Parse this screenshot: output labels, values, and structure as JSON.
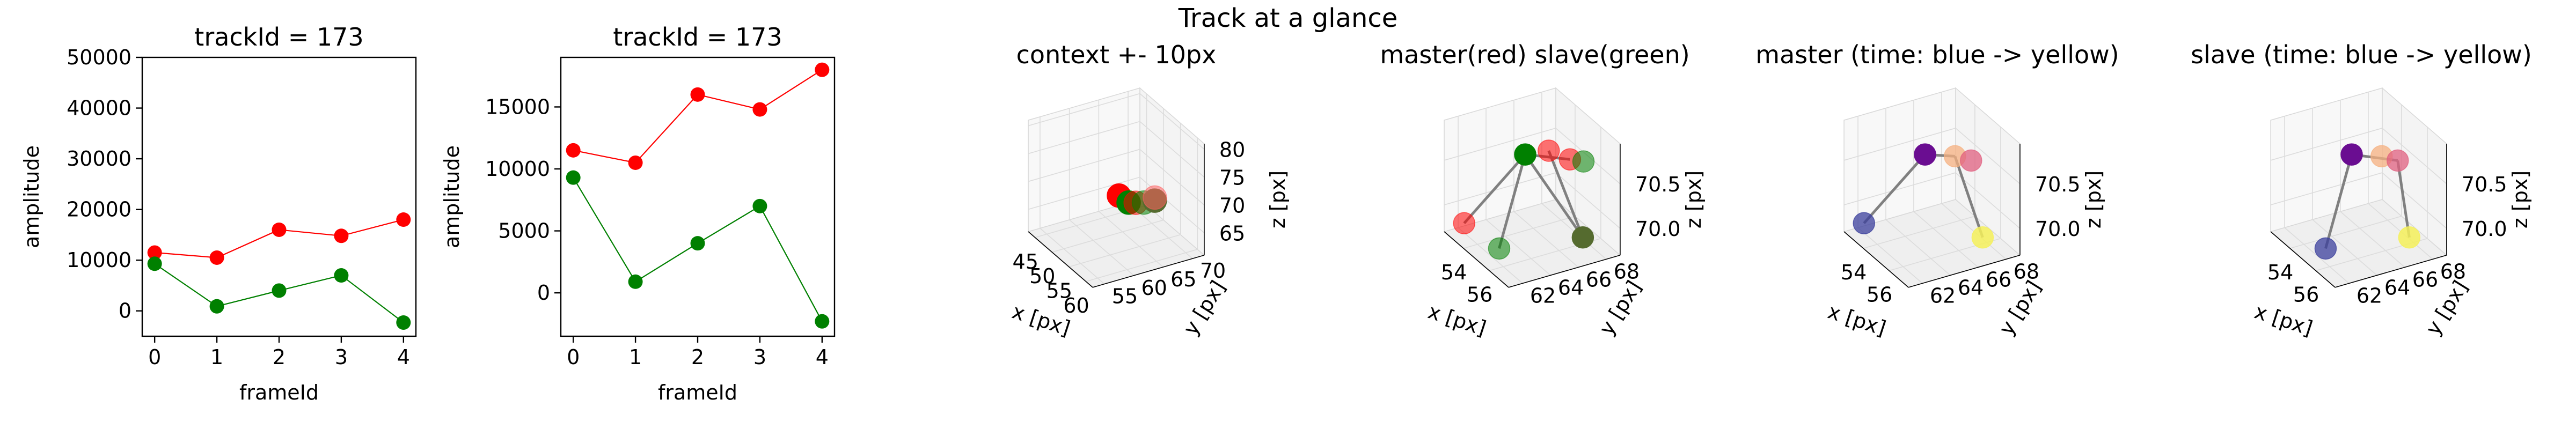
{
  "figure": {
    "suptitle": "Track at a glance"
  },
  "colors": {
    "master": "#ff0000",
    "slave": "#008000",
    "connector": "#808080",
    "time_start": "#2a2e9e",
    "time_end": "#f5f05a"
  },
  "chart_data": [
    {
      "type": "line",
      "title": "trackId = 173",
      "xlabel": "frameId",
      "ylabel": "amplitude",
      "xlim": [
        -0.2,
        4.2
      ],
      "ylim": [
        -5000,
        50000
      ],
      "xticks": [
        0,
        1,
        2,
        3,
        4
      ],
      "yticks": [
        0,
        10000,
        20000,
        30000,
        40000,
        50000
      ],
      "grid": false,
      "series": [
        {
          "color": "#ff0000",
          "x": [
            0,
            1,
            2,
            3,
            4
          ],
          "y": [
            11500,
            10500,
            16000,
            14800,
            18000
          ]
        },
        {
          "color": "#008000",
          "x": [
            0,
            1,
            2,
            3,
            4
          ],
          "y": [
            9300,
            900,
            4000,
            7000,
            -2300
          ]
        }
      ]
    },
    {
      "type": "line",
      "title": "trackId = 173",
      "xlabel": "frameId",
      "ylabel": "amplitude",
      "xlim": [
        -0.2,
        4.2
      ],
      "ylim": [
        -3500,
        19000
      ],
      "xticks": [
        0,
        1,
        2,
        3,
        4
      ],
      "yticks": [
        0,
        5000,
        10000,
        15000
      ],
      "grid": false,
      "series": [
        {
          "color": "#ff0000",
          "x": [
            0,
            1,
            2,
            3,
            4
          ],
          "y": [
            11500,
            10500,
            16000,
            14800,
            18000
          ]
        },
        {
          "color": "#008000",
          "x": [
            0,
            1,
            2,
            3,
            4
          ],
          "y": [
            9300,
            900,
            4000,
            7000,
            -2300
          ]
        }
      ]
    },
    {
      "type": "scatter",
      "title": "context +- 10px",
      "xlabel": "x [px]",
      "ylabel": "y [px]",
      "zlabel": "z [px]",
      "xticks": [
        "45",
        "50",
        "55",
        "60"
      ],
      "yticks": [
        "55",
        "60",
        "65",
        "70"
      ],
      "zticks": [
        "65",
        "70",
        "75",
        "80"
      ],
      "xlim": [
        43,
        62
      ],
      "ylim": [
        53,
        72
      ],
      "zlim": [
        61,
        81
      ],
      "points": [
        {
          "x": 53.3,
          "y": 62.5,
          "z": 70.0,
          "color": "#ff0000",
          "alpha": 1.0
        },
        {
          "x": 55.8,
          "y": 62.7,
          "z": 70.0,
          "color": "#008000",
          "alpha": 1.0
        },
        {
          "x": 56.5,
          "y": 63.5,
          "z": 70.1,
          "color": "#ff0000",
          "alpha": 0.55
        },
        {
          "x": 57.2,
          "y": 64.5,
          "z": 70.2,
          "color": "#008000",
          "alpha": 0.55
        },
        {
          "x": 57.8,
          "y": 66.0,
          "z": 70.4,
          "color": "#556b2f",
          "alpha": 1.0
        },
        {
          "x": 57.3,
          "y": 66.3,
          "z": 70.6,
          "color": "#ff6060",
          "alpha": 0.55
        }
      ]
    },
    {
      "type": "scatter",
      "title": "master(red) slave(green)",
      "xlabel": "x [px]",
      "ylabel": "y [px]",
      "zlabel": "z [px]",
      "xticks": [
        "54",
        "56"
      ],
      "yticks": [
        "62",
        "64",
        "66",
        "68"
      ],
      "zticks": [
        "70.0",
        "70.5"
      ],
      "xlim": [
        52.5,
        57.5
      ],
      "ylim": [
        61,
        69
      ],
      "zlim": [
        69.7,
        70.95
      ],
      "points": [
        {
          "x": 53.4,
          "y": 61.6,
          "z": 69.88,
          "color": "#ff0000",
          "alpha": 0.55
        },
        {
          "x": 55.9,
          "y": 61.8,
          "z": 69.9,
          "color": "#008000",
          "alpha": 0.55
        },
        {
          "x": 55.0,
          "y": 64.5,
          "z": 70.72,
          "color": "#008000",
          "alpha": 1.0
        },
        {
          "x": 55.2,
          "y": 66.0,
          "z": 70.72,
          "color": "#ff0000",
          "alpha": 0.55
        },
        {
          "x": 56.2,
          "y": 66.6,
          "z": 70.72,
          "color": "#ff0000",
          "alpha": 0.55
        },
        {
          "x": 56.6,
          "y": 67.2,
          "z": 70.72,
          "color": "#008000",
          "alpha": 0.55
        },
        {
          "x": 57.2,
          "y": 66.6,
          "z": 69.97,
          "color": "#556b2f",
          "alpha": 1.0
        }
      ],
      "segments": [
        [
          0,
          2
        ],
        [
          2,
          1
        ],
        [
          2,
          4
        ],
        [
          2,
          6
        ],
        [
          3,
          6
        ]
      ]
    },
    {
      "type": "scatter",
      "title": "master (time: blue -> yellow)",
      "xlabel": "x [px]",
      "ylabel": "y [px]",
      "zlabel": "z [px]",
      "xticks": [
        "54",
        "56"
      ],
      "yticks": [
        "62",
        "64",
        "66",
        "68"
      ],
      "zticks": [
        "70.0",
        "70.5"
      ],
      "xlim": [
        52.5,
        57.5
      ],
      "ylim": [
        61,
        69
      ],
      "zlim": [
        69.7,
        70.95
      ],
      "points": [
        {
          "x": 53.4,
          "y": 61.6,
          "z": 69.88,
          "color": "#3b3f9c",
          "alpha": 0.75
        },
        {
          "x": 55.0,
          "y": 64.5,
          "z": 70.72,
          "color": "#6a0d91",
          "alpha": 1.0
        },
        {
          "x": 55.7,
          "y": 66.0,
          "z": 70.72,
          "color": "#f5b080",
          "alpha": 0.75
        },
        {
          "x": 56.3,
          "y": 66.6,
          "z": 70.72,
          "color": "#e06080",
          "alpha": 0.75
        },
        {
          "x": 57.2,
          "y": 66.6,
          "z": 69.97,
          "color": "#f5f05a",
          "alpha": 0.85
        }
      ],
      "segments": [
        [
          0,
          1
        ],
        [
          1,
          2
        ],
        [
          2,
          4
        ]
      ]
    },
    {
      "type": "scatter",
      "title": "slave (time: blue -> yellow)",
      "xlabel": "x [px]",
      "ylabel": "y [px]",
      "zlabel": "z [px]",
      "xticks": [
        "54",
        "56"
      ],
      "yticks": [
        "62",
        "64",
        "66",
        "68"
      ],
      "zticks": [
        "70.0",
        "70.5"
      ],
      "xlim": [
        52.5,
        57.5
      ],
      "ylim": [
        61,
        69
      ],
      "zlim": [
        69.7,
        70.95
      ],
      "points": [
        {
          "x": 55.9,
          "y": 61.8,
          "z": 69.9,
          "color": "#3b3f9c",
          "alpha": 0.75
        },
        {
          "x": 55.0,
          "y": 64.5,
          "z": 70.72,
          "color": "#6a0d91",
          "alpha": 1.0
        },
        {
          "x": 55.7,
          "y": 66.0,
          "z": 70.72,
          "color": "#f5b080",
          "alpha": 0.75
        },
        {
          "x": 56.3,
          "y": 66.6,
          "z": 70.72,
          "color": "#e06080",
          "alpha": 0.75
        },
        {
          "x": 57.2,
          "y": 66.6,
          "z": 69.97,
          "color": "#f5f05a",
          "alpha": 0.85
        }
      ],
      "segments": [
        [
          1,
          0
        ],
        [
          1,
          3
        ],
        [
          3,
          4
        ]
      ]
    }
  ]
}
